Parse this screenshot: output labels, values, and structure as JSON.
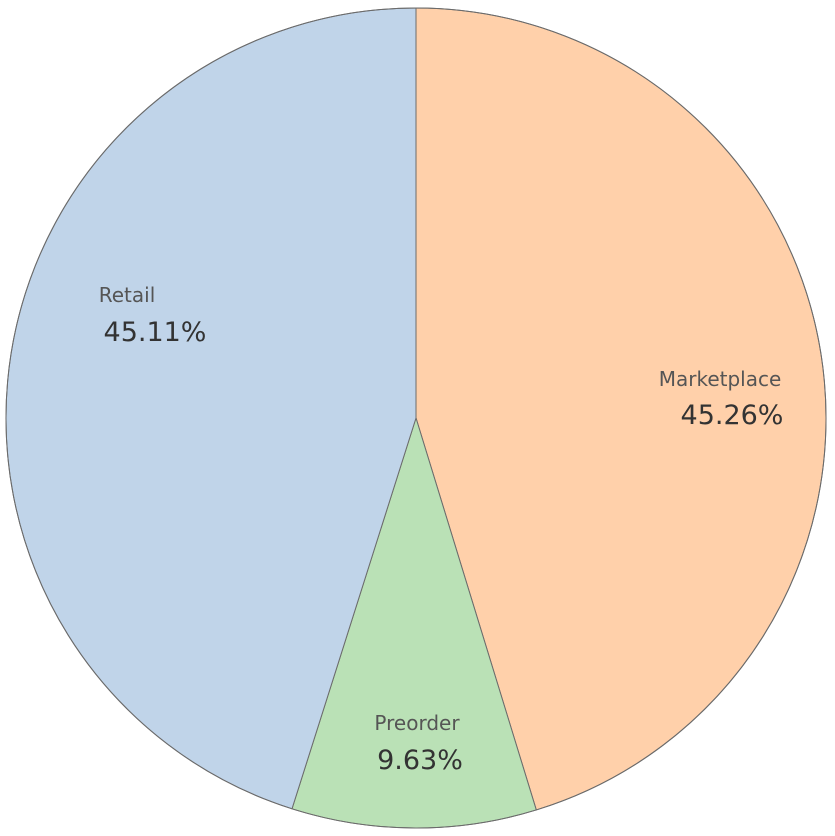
{
  "chart_data": {
    "type": "pie",
    "title": "",
    "start_angle_deg": 0,
    "direction": "clockwise",
    "slices": [
      {
        "label": "Marketplace",
        "percent_label": "45.26%",
        "value": 45.26,
        "color": "#ffd0aa"
      },
      {
        "label": "Preorder",
        "percent_label": "9.63%",
        "value": 9.63,
        "color": "#bae1b6"
      },
      {
        "label": "Retail",
        "percent_label": "45.11%",
        "value": 45.11,
        "color": "#c0d4e9"
      }
    ],
    "label_colors": {
      "name": "#555555",
      "percent": "#333333"
    },
    "border_color": "#6b6b6b"
  }
}
